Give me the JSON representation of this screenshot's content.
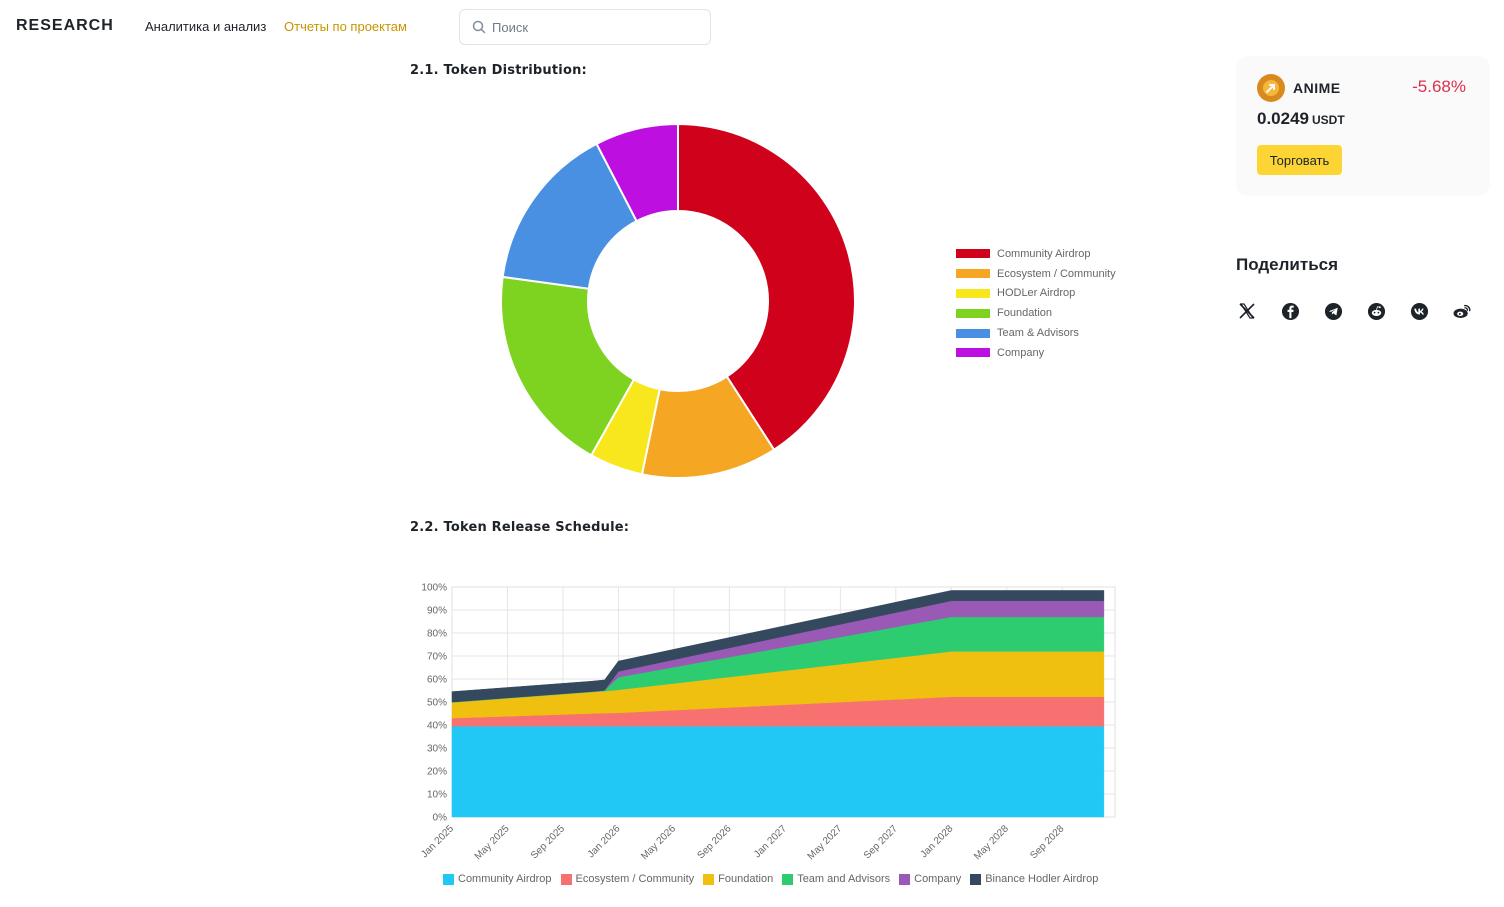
{
  "header": {
    "logo": "RESEARCH",
    "nav": [
      "Аналитика и анализ",
      "Отчеты по проектам"
    ],
    "search_placeholder": "Поиск"
  },
  "sections": {
    "distribution_title": "2.1. Token Distribution:",
    "release_title": "2.2. Token Release Schedule:"
  },
  "sidebar": {
    "coin": {
      "symbol": "ANIME",
      "change": "-5.68%",
      "price": "0.0249",
      "unit": "USDT",
      "trade_label": "Торговать",
      "icon": "anime-coin-icon"
    },
    "share": {
      "title": "Поделиться",
      "icons": [
        "x-icon",
        "facebook-icon",
        "telegram-icon",
        "reddit-icon",
        "vk-icon",
        "weibo-icon"
      ]
    }
  },
  "colors": {
    "accent": "#c99400",
    "negative": "#d9304e",
    "button": "#fcd535"
  },
  "chart_data": [
    {
      "type": "pie",
      "donut": true,
      "legend_position": "right",
      "categories": [
        "Community Airdrop",
        "Ecosystem / Community",
        "HODLer Airdrop",
        "Foundation",
        "Team & Advisors",
        "Company"
      ],
      "values": [
        37.6,
        11.4,
        4.5,
        17.5,
        14.0,
        7.0
      ],
      "colors": [
        "#d0021b",
        "#f5a623",
        "#f8e71c",
        "#7ed321",
        "#4a90e2",
        "#bd10e0"
      ]
    },
    {
      "type": "area",
      "stacked": true,
      "legend_position": "bottom",
      "x_ticks": [
        "Jan 2025",
        "May 2025",
        "Sep 2025",
        "Jan 2026",
        "May 2026",
        "Sep 2026",
        "Jan 2027",
        "May 2027",
        "Sep 2027",
        "Jan 2028",
        "May 2028",
        "Sep 2028"
      ],
      "y_ticks": [
        "0%",
        "10%",
        "20%",
        "30%",
        "40%",
        "50%",
        "60%",
        "70%",
        "80%",
        "90%",
        "100%"
      ],
      "ylim": [
        0,
        100
      ],
      "grid": true,
      "x": [
        "2025-01",
        "2025-11",
        "2025-12",
        "2026-01",
        "2028-01",
        "2028-12"
      ],
      "series": [
        {
          "name": "Community Airdrop",
          "color": "#22c8f5",
          "values": [
            39.5,
            39.5,
            39.5,
            39.5,
            39.5,
            39.5
          ]
        },
        {
          "name": "Ecosystem / Community",
          "color": "#f87171",
          "values": [
            3.5,
            5.5,
            5.7,
            5.8,
            12.8,
            12.8
          ]
        },
        {
          "name": "Foundation",
          "color": "#f0c010",
          "values": [
            6.8,
            9.3,
            9.5,
            10.0,
            19.7,
            19.7
          ]
        },
        {
          "name": "Team and Advisors",
          "color": "#2ecc71",
          "values": [
            0.2,
            0.2,
            0.3,
            5.5,
            15.0,
            15.0
          ]
        },
        {
          "name": "Company",
          "color": "#9b59b6",
          "values": [
            0,
            0,
            0.1,
            2.5,
            7.0,
            7.0
          ]
        },
        {
          "name": "Binance Hodler Airdrop",
          "color": "#34495e",
          "values": [
            4.5,
            4.5,
            4.5,
            4.5,
            4.5,
            4.5
          ]
        }
      ]
    }
  ]
}
